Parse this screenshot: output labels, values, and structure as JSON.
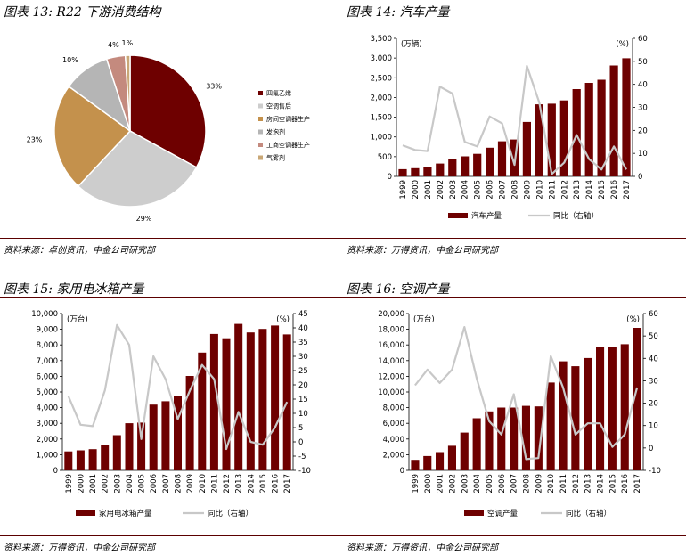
{
  "colors": {
    "bar": "#6e0000",
    "line": "#c8c8c8",
    "rule": "#5b0000"
  },
  "panels": [
    {
      "title": "图表 13: R22 下游消费结构",
      "source": "资料来源：卓创资讯，中金公司研究部"
    },
    {
      "title": "图表 14:  汽车产量",
      "source": "资料来源：万得资讯，中金公司研究部"
    },
    {
      "title": "图表 15:  家用电冰箱产量",
      "source": "资料来源：万得资讯，中金公司研究部"
    },
    {
      "title": "图表 16:  空调产量",
      "source": "资料来源：万得资讯，中金公司研究部"
    }
  ],
  "chart_data": [
    {
      "type": "pie",
      "title": "R22 下游消费结构",
      "slices": [
        {
          "label": "四氟乙烯",
          "value": 33,
          "pct_label": "33%",
          "color": "#6e0000"
        },
        {
          "label": "空调售后",
          "value": 29,
          "pct_label": "29%",
          "color": "#cdcdcd"
        },
        {
          "label": "房间空调器生产",
          "value": 23,
          "pct_label": "23%",
          "color": "#c4914c"
        },
        {
          "label": "发泡剂",
          "value": 10,
          "pct_label": "10%",
          "color": "#b5b5b5"
        },
        {
          "label": "工商空调器生产",
          "value": 4,
          "pct_label": "4%",
          "color": "#c48a7e"
        },
        {
          "label": "气雾剂",
          "value": 1,
          "pct_label": "1%",
          "color": "#c9a776"
        }
      ]
    },
    {
      "type": "bar",
      "title": "汽车产量",
      "categories": [
        "1999",
        "2000",
        "2001",
        "2002",
        "2003",
        "2004",
        "2005",
        "2006",
        "2007",
        "2008",
        "2009",
        "2010",
        "2011",
        "2012",
        "2013",
        "2014",
        "2015",
        "2016",
        "2017"
      ],
      "left_unit": "(万辆)",
      "right_unit": "(%)",
      "ylim": [
        0,
        3500
      ],
      "yticks": [
        "0",
        "500",
        "1,000",
        "1,500",
        "2,000",
        "2,500",
        "3,000",
        "3,500"
      ],
      "y2lim": [
        0,
        60
      ],
      "y2ticks": [
        "0",
        "10",
        "20",
        "30",
        "40",
        "50",
        "60"
      ],
      "series": [
        {
          "name": "汽车产量",
          "type": "bar",
          "axis": "left",
          "values": [
            183,
            207,
            234,
            325,
            444,
            507,
            571,
            728,
            889,
            935,
            1379,
            1827,
            1842,
            1927,
            2212,
            2372,
            2450,
            2812,
            2994
          ]
        },
        {
          "name": "同比（右轴）",
          "type": "line",
          "axis": "right",
          "values": [
            13.5,
            11.5,
            11,
            39,
            36,
            15,
            13,
            26,
            23,
            5,
            48,
            32,
            1,
            6,
            18,
            7.5,
            3,
            13,
            3
          ]
        }
      ]
    },
    {
      "type": "bar",
      "title": "家用电冰箱产量",
      "categories": [
        "1999",
        "2000",
        "2001",
        "2002",
        "2003",
        "2004",
        "2005",
        "2006",
        "2007",
        "2008",
        "2009",
        "2010",
        "2011",
        "2012",
        "2013",
        "2014",
        "2015",
        "2016",
        "2017"
      ],
      "left_unit": "(万台)",
      "right_unit": "(%)",
      "ylim": [
        0,
        10000
      ],
      "yticks": [
        "0",
        "1,000",
        "2,000",
        "3,000",
        "4,000",
        "5,000",
        "6,000",
        "7,000",
        "8,000",
        "9,000",
        "10,000"
      ],
      "y2lim": [
        -10,
        45
      ],
      "y2ticks": [
        "-10",
        "-5",
        "0",
        "5",
        "10",
        "15",
        "20",
        "25",
        "30",
        "35",
        "40",
        "45"
      ],
      "series": [
        {
          "name": "家用电冰箱产量",
          "type": "bar",
          "axis": "left",
          "values": [
            1210,
            1279,
            1351,
            1599,
            2243,
            3008,
            3044,
            4193,
            4410,
            4758,
            6020,
            7511,
            8699,
            8427,
            9341,
            8796,
            9021,
            9238,
            8670
          ]
        },
        {
          "name": "同比（右轴）",
          "type": "line",
          "axis": "right",
          "values": [
            16,
            6,
            5.5,
            18,
            41,
            34,
            1,
            30,
            22,
            8,
            18,
            27,
            22,
            -2.5,
            10.5,
            0,
            -1,
            5,
            14
          ]
        }
      ]
    },
    {
      "type": "bar",
      "title": "空调产量",
      "categories": [
        "1999",
        "2000",
        "2001",
        "2002",
        "2003",
        "2004",
        "2005",
        "2006",
        "2007",
        "2008",
        "2009",
        "2010",
        "2011",
        "2012",
        "2013",
        "2014",
        "2015",
        "2016",
        "2017"
      ],
      "left_unit": "(万台)",
      "right_unit": "(%)",
      "ylim": [
        0,
        20000
      ],
      "yticks": [
        "0",
        "2,000",
        "4,000",
        "6,000",
        "8,000",
        "10,000",
        "12,000",
        "14,000",
        "16,000",
        "18,000",
        "20,000"
      ],
      "y2lim": [
        -10,
        60
      ],
      "y2ticks": [
        "-10",
        "0",
        "10",
        "20",
        "30",
        "40",
        "50",
        "60"
      ],
      "series": [
        {
          "name": "空调产量",
          "type": "bar",
          "axis": "left",
          "values": [
            1338,
            1827,
            2333,
            3135,
            4821,
            6646,
            7521,
            8011,
            8014,
            8232,
            8156,
            11204,
            13913,
            13281,
            14333,
            15716,
            15790,
            16091,
            18182
          ]
        },
        {
          "name": "同比（右轴）",
          "type": "line",
          "axis": "right",
          "values": [
            28,
            35,
            29,
            35,
            54,
            31,
            12,
            6,
            24,
            -5,
            -4.5,
            41,
            27,
            6,
            11,
            11,
            0.5,
            6,
            27
          ]
        }
      ]
    }
  ]
}
